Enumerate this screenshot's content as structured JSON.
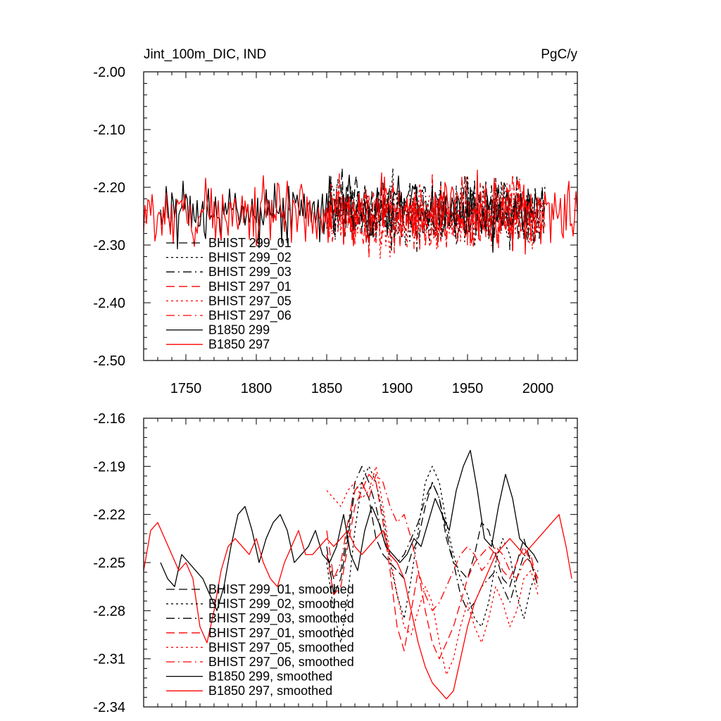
{
  "chart_data": [
    {
      "type": "line",
      "title": "Jint_100m_DIC, IND",
      "units": "PgC/y",
      "xlim": [
        1720,
        2028
      ],
      "ylim": [
        -2.5,
        -2.0
      ],
      "xticks": [
        1750,
        1800,
        1850,
        1900,
        1950,
        2000
      ],
      "xtick_labels": [
        "1750",
        "1800",
        "1850",
        "1900",
        "1950",
        "2000"
      ],
      "yticks": [
        -2.5,
        -2.4,
        -2.3,
        -2.2,
        -2.1,
        -2.0
      ],
      "ytick_labels": [
        "-2.50",
        "-2.40",
        "-2.30",
        "-2.20",
        "-2.10",
        "-2.00"
      ],
      "legend": "bottom-left",
      "series": [
        {
          "name": "BHIST 299_01",
          "color": "#000000",
          "dash": "long",
          "start": 1850,
          "end": 2005,
          "mean": -2.245,
          "amp": 0.055,
          "seed": 11
        },
        {
          "name": "BHIST 299_02",
          "color": "#000000",
          "dash": "dot",
          "start": 1850,
          "end": 2005,
          "mean": -2.245,
          "amp": 0.06,
          "seed": 12
        },
        {
          "name": "BHIST 299_03",
          "color": "#000000",
          "dash": "dashdot",
          "start": 1850,
          "end": 2005,
          "mean": -2.24,
          "amp": 0.055,
          "seed": 13
        },
        {
          "name": "BHIST 297_01",
          "color": "#ff0000",
          "dash": "long",
          "start": 1850,
          "end": 2005,
          "mean": -2.25,
          "amp": 0.055,
          "seed": 14
        },
        {
          "name": "BHIST 297_05",
          "color": "#ff0000",
          "dash": "dot",
          "start": 1850,
          "end": 2005,
          "mean": -2.25,
          "amp": 0.055,
          "seed": 15
        },
        {
          "name": "BHIST 297_06",
          "color": "#ff0000",
          "dash": "dashdot",
          "start": 1850,
          "end": 2005,
          "mean": -2.245,
          "amp": 0.055,
          "seed": 16
        },
        {
          "name": "B1850 299",
          "color": "#000000",
          "dash": "solid",
          "start": 1732,
          "end": 2000,
          "mean": -2.24,
          "amp": 0.05,
          "seed": 17
        },
        {
          "name": "B1850 297",
          "color": "#ff0000",
          "dash": "solid",
          "start": 1720,
          "end": 2028,
          "mean": -2.245,
          "amp": 0.05,
          "seed": 18
        }
      ]
    },
    {
      "type": "line",
      "title": "",
      "xlim": [
        1720,
        2028
      ],
      "ylim": [
        -2.34,
        -2.16
      ],
      "xticks": [
        1750,
        1800,
        1850,
        1900,
        1950,
        2000
      ],
      "yticks": [
        -2.34,
        -2.31,
        -2.28,
        -2.25,
        -2.22,
        -2.19,
        -2.16
      ],
      "ytick_labels": [
        "-2.34",
        "-2.31",
        "-2.28",
        "-2.25",
        "-2.22",
        "-2.19",
        "-2.16"
      ],
      "legend": "bottom-left",
      "series": [
        {
          "name": "BHIST 299_01, smoothed",
          "color": "#000000",
          "dash": "long",
          "x": [
            1850,
            1855,
            1860,
            1865,
            1870,
            1875,
            1880,
            1885,
            1890,
            1895,
            1900,
            1905,
            1910,
            1915,
            1920,
            1925,
            1930,
            1935,
            1940,
            1945,
            1950,
            1955,
            1960,
            1965,
            1970,
            1975,
            1980,
            1985,
            1990,
            1995,
            2000
          ],
          "y": [
            -2.24,
            -2.27,
            -2.26,
            -2.235,
            -2.205,
            -2.2,
            -2.21,
            -2.235,
            -2.245,
            -2.25,
            -2.255,
            -2.26,
            -2.245,
            -2.235,
            -2.215,
            -2.2,
            -2.21,
            -2.235,
            -2.25,
            -2.255,
            -2.26,
            -2.245,
            -2.225,
            -2.23,
            -2.245,
            -2.26,
            -2.265,
            -2.25,
            -2.235,
            -2.25,
            -2.265
          ]
        },
        {
          "name": "BHIST 299_02, smoothed",
          "color": "#000000",
          "dash": "dot",
          "x": [
            1850,
            1855,
            1860,
            1865,
            1870,
            1875,
            1880,
            1885,
            1890,
            1895,
            1900,
            1905,
            1910,
            1915,
            1920,
            1925,
            1930,
            1935,
            1940,
            1945,
            1950,
            1955,
            1960,
            1965,
            1970,
            1975,
            1980,
            1985,
            1990,
            1995,
            2000
          ],
          "y": [
            -2.25,
            -2.28,
            -2.3,
            -2.27,
            -2.23,
            -2.2,
            -2.19,
            -2.2,
            -2.22,
            -2.25,
            -2.27,
            -2.285,
            -2.26,
            -2.23,
            -2.2,
            -2.19,
            -2.2,
            -2.225,
            -2.245,
            -2.26,
            -2.27,
            -2.285,
            -2.29,
            -2.275,
            -2.25,
            -2.235,
            -2.245,
            -2.27,
            -2.285,
            -2.265,
            -2.255
          ]
        },
        {
          "name": "BHIST 299_03, smoothed",
          "color": "#000000",
          "dash": "dashdot",
          "x": [
            1850,
            1855,
            1860,
            1865,
            1870,
            1875,
            1880,
            1885,
            1890,
            1895,
            1900,
            1905,
            1910,
            1915,
            1920,
            1925,
            1930,
            1935,
            1940,
            1945,
            1950,
            1955,
            1960,
            1965,
            1970,
            1975,
            1980,
            1985,
            1990,
            1995,
            2000
          ],
          "y": [
            -2.245,
            -2.26,
            -2.255,
            -2.23,
            -2.2,
            -2.19,
            -2.2,
            -2.215,
            -2.235,
            -2.245,
            -2.25,
            -2.245,
            -2.235,
            -2.225,
            -2.21,
            -2.2,
            -2.21,
            -2.23,
            -2.25,
            -2.27,
            -2.28,
            -2.275,
            -2.265,
            -2.26,
            -2.255,
            -2.265,
            -2.275,
            -2.26,
            -2.245,
            -2.25,
            -2.26
          ]
        },
        {
          "name": "BHIST 297_01, smoothed",
          "color": "#ff0000",
          "dash": "long",
          "x": [
            1850,
            1855,
            1860,
            1865,
            1870,
            1875,
            1880,
            1885,
            1890,
            1895,
            1900,
            1905,
            1910,
            1915,
            1920,
            1925,
            1930,
            1935,
            1940,
            1945,
            1950,
            1955,
            1960,
            1965,
            1970,
            1975,
            1980,
            1985,
            1990,
            1995,
            2000
          ],
          "y": [
            -2.245,
            -2.27,
            -2.265,
            -2.24,
            -2.215,
            -2.205,
            -2.195,
            -2.2,
            -2.225,
            -2.255,
            -2.29,
            -2.305,
            -2.28,
            -2.255,
            -2.28,
            -2.3,
            -2.31,
            -2.3,
            -2.29,
            -2.275,
            -2.26,
            -2.25,
            -2.245,
            -2.24,
            -2.245,
            -2.255,
            -2.26,
            -2.25,
            -2.24,
            -2.25,
            -2.26
          ]
        },
        {
          "name": "BHIST 297_05, smoothed",
          "color": "#ff0000",
          "dash": "dot",
          "x": [
            1850,
            1855,
            1860,
            1865,
            1870,
            1875,
            1880,
            1885,
            1890,
            1895,
            1900,
            1905,
            1910,
            1915,
            1920,
            1925,
            1930,
            1935,
            1940,
            1945,
            1950,
            1955,
            1960,
            1965,
            1970,
            1975,
            1980,
            1985,
            1990,
            1995,
            2000
          ],
          "y": [
            -2.205,
            -2.21,
            -2.215,
            -2.205,
            -2.2,
            -2.21,
            -2.205,
            -2.19,
            -2.215,
            -2.245,
            -2.27,
            -2.29,
            -2.295,
            -2.28,
            -2.265,
            -2.275,
            -2.3,
            -2.32,
            -2.31,
            -2.29,
            -2.275,
            -2.29,
            -2.3,
            -2.285,
            -2.265,
            -2.275,
            -2.29,
            -2.28,
            -2.26,
            -2.255,
            -2.27
          ]
        },
        {
          "name": "BHIST 297_06, smoothed",
          "color": "#ff0000",
          "dash": "dashdot",
          "x": [
            1850,
            1855,
            1860,
            1865,
            1870,
            1875,
            1880,
            1885,
            1890,
            1895,
            1900,
            1905,
            1910,
            1915,
            1920,
            1925,
            1930,
            1935,
            1940,
            1945,
            1950,
            1955,
            1960,
            1965,
            1970,
            1975,
            1980,
            1985,
            1990,
            1995,
            2000
          ],
          "y": [
            -2.23,
            -2.26,
            -2.25,
            -2.225,
            -2.205,
            -2.2,
            -2.21,
            -2.195,
            -2.2,
            -2.215,
            -2.225,
            -2.22,
            -2.235,
            -2.255,
            -2.27,
            -2.28,
            -2.275,
            -2.265,
            -2.255,
            -2.245,
            -2.24,
            -2.245,
            -2.255,
            -2.25,
            -2.24,
            -2.245,
            -2.255,
            -2.26,
            -2.25,
            -2.245,
            -2.265
          ]
        },
        {
          "name": "B1850 299, smoothed",
          "color": "#000000",
          "dash": "solid",
          "x": [
            1732,
            1737,
            1742,
            1747,
            1752,
            1757,
            1762,
            1767,
            1772,
            1777,
            1782,
            1787,
            1792,
            1797,
            1802,
            1807,
            1812,
            1817,
            1822,
            1827,
            1832,
            1837,
            1842,
            1847,
            1852,
            1857,
            1862,
            1867,
            1872,
            1877,
            1882,
            1887,
            1892,
            1897,
            1902,
            1907,
            1912,
            1917,
            1922,
            1927,
            1932,
            1937,
            1942,
            1947,
            1952,
            1957,
            1962,
            1967,
            1972,
            1977,
            1982,
            1987,
            1992,
            1997,
            2000
          ],
          "y": [
            -2.25,
            -2.26,
            -2.265,
            -2.245,
            -2.25,
            -2.255,
            -2.26,
            -2.27,
            -2.28,
            -2.265,
            -2.24,
            -2.22,
            -2.215,
            -2.23,
            -2.25,
            -2.235,
            -2.225,
            -2.22,
            -2.23,
            -2.25,
            -2.245,
            -2.24,
            -2.23,
            -2.245,
            -2.25,
            -2.24,
            -2.22,
            -2.245,
            -2.255,
            -2.23,
            -2.215,
            -2.225,
            -2.24,
            -2.245,
            -2.25,
            -2.245,
            -2.235,
            -2.24,
            -2.225,
            -2.21,
            -2.22,
            -2.23,
            -2.205,
            -2.19,
            -2.18,
            -2.205,
            -2.235,
            -2.24,
            -2.215,
            -2.195,
            -2.21,
            -2.235,
            -2.24,
            -2.245,
            -2.25
          ]
        },
        {
          "name": "B1850 297, smoothed",
          "color": "#ff0000",
          "dash": "solid",
          "x": [
            1720,
            1725,
            1730,
            1735,
            1740,
            1745,
            1750,
            1755,
            1760,
            1765,
            1770,
            1775,
            1780,
            1785,
            1790,
            1795,
            1800,
            1805,
            1810,
            1815,
            1820,
            1825,
            1830,
            1835,
            1840,
            1845,
            1850,
            1855,
            1860,
            1865,
            1870,
            1875,
            1880,
            1885,
            1890,
            1895,
            1900,
            1905,
            1910,
            1915,
            1920,
            1925,
            1930,
            1935,
            1940,
            1945,
            1950,
            1955,
            1960,
            1965,
            1970,
            1975,
            1980,
            1985,
            1990,
            1995,
            2000,
            2005,
            2010,
            2015,
            2020,
            2024
          ],
          "y": [
            -2.255,
            -2.23,
            -2.225,
            -2.235,
            -2.245,
            -2.255,
            -2.25,
            -2.26,
            -2.29,
            -2.3,
            -2.28,
            -2.255,
            -2.24,
            -2.235,
            -2.24,
            -2.245,
            -2.235,
            -2.25,
            -2.26,
            -2.265,
            -2.25,
            -2.24,
            -2.23,
            -2.245,
            -2.245,
            -2.24,
            -2.235,
            -2.24,
            -2.235,
            -2.23,
            -2.24,
            -2.245,
            -2.24,
            -2.235,
            -2.23,
            -2.245,
            -2.25,
            -2.26,
            -2.28,
            -2.3,
            -2.315,
            -2.325,
            -2.33,
            -2.335,
            -2.33,
            -2.31,
            -2.29,
            -2.275,
            -2.265,
            -2.255,
            -2.245,
            -2.24,
            -2.235,
            -2.24,
            -2.245,
            -2.24,
            -2.235,
            -2.23,
            -2.225,
            -2.22,
            -2.24,
            -2.26
          ]
        }
      ]
    }
  ]
}
